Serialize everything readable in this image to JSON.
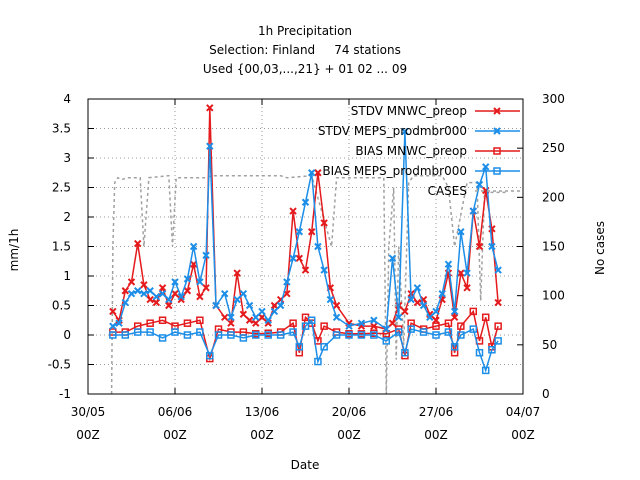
{
  "chart_data": {
    "type": "line",
    "title_lines": [
      "1h Precipitation",
      "Selection: Finland     74 stations",
      "Used {00,03,...,21} + 01 02 ... 09"
    ],
    "xlabel": "Date",
    "ylabel": "mm/1h",
    "y2label": "No cases",
    "xlim": [
      0,
      35
    ],
    "ylim": [
      -1,
      4
    ],
    "y2lim": [
      0,
      300
    ],
    "x_ticks": [
      {
        "x": 0,
        "label1": "30/05",
        "label2": "00Z"
      },
      {
        "x": 7,
        "label1": "06/06",
        "label2": "00Z"
      },
      {
        "x": 14,
        "label1": "13/06",
        "label2": "00Z"
      },
      {
        "x": 21,
        "label1": "20/06",
        "label2": "00Z"
      },
      {
        "x": 28,
        "label1": "27/06",
        "label2": "00Z"
      },
      {
        "x": 35,
        "label1": "04/07",
        "label2": "00Z"
      }
    ],
    "y_ticks": [
      "-1",
      "-0.5",
      "0",
      "0.5",
      "1",
      "1.5",
      "2",
      "2.5",
      "3",
      "3.5",
      "4"
    ],
    "y2_ticks": [
      "0",
      "50",
      "100",
      "150",
      "200",
      "250",
      "300"
    ],
    "grid": true,
    "legend_position": "top-right",
    "colors": {
      "red": "#e41a1c",
      "blue": "#1c8ee8",
      "gray": "#a0a0a0"
    },
    "series": [
      {
        "name": "STDV MNWC_preop",
        "axis": "y1",
        "marker": "x",
        "color": "#e41a1c",
        "points": [
          [
            2,
            0.4
          ],
          [
            2.5,
            0.25
          ],
          [
            3,
            0.75
          ],
          [
            3.5,
            0.9
          ],
          [
            4,
            1.55
          ],
          [
            4.5,
            0.85
          ],
          [
            5,
            0.6
          ],
          [
            5.5,
            0.55
          ],
          [
            6,
            0.8
          ],
          [
            6.5,
            0.5
          ],
          [
            7,
            0.7
          ],
          [
            7.5,
            0.6
          ],
          [
            8,
            0.75
          ],
          [
            8.5,
            1.2
          ],
          [
            9,
            0.65
          ],
          [
            9.5,
            0.8
          ],
          [
            9.8,
            3.85
          ],
          [
            10.3,
            0.5
          ],
          [
            11,
            0.3
          ],
          [
            11.5,
            0.2
          ],
          [
            12,
            1.05
          ],
          [
            12.5,
            0.35
          ],
          [
            13,
            0.25
          ],
          [
            13.5,
            0.2
          ],
          [
            14,
            0.3
          ],
          [
            14.5,
            0.2
          ],
          [
            15,
            0.5
          ],
          [
            15.5,
            0.6
          ],
          [
            16,
            0.7
          ],
          [
            16.5,
            2.1
          ],
          [
            17,
            1.3
          ],
          [
            17.5,
            1.1
          ],
          [
            18,
            1.75
          ],
          [
            18.5,
            2.75
          ],
          [
            19,
            1.9
          ],
          [
            19.5,
            0.8
          ],
          [
            20,
            0.5
          ],
          [
            21,
            0.2
          ],
          [
            22,
            0.15
          ],
          [
            23,
            0.15
          ],
          [
            24,
            0.1
          ],
          [
            24.5,
            0.2
          ],
          [
            25,
            0.5
          ],
          [
            25.5,
            0.4
          ],
          [
            26,
            0.7
          ],
          [
            26.5,
            0.55
          ],
          [
            27,
            0.6
          ],
          [
            27.5,
            0.35
          ],
          [
            28,
            0.25
          ],
          [
            28.5,
            0.6
          ],
          [
            29,
            1.05
          ],
          [
            29.5,
            0.3
          ],
          [
            30,
            1.05
          ],
          [
            30.5,
            0.8
          ],
          [
            31,
            2.1
          ],
          [
            31.5,
            1.5
          ],
          [
            32,
            2.45
          ],
          [
            32.5,
            1.8
          ],
          [
            33,
            0.55
          ]
        ]
      },
      {
        "name": "STDV MEPS_prodmbr000",
        "axis": "y1",
        "marker": "x",
        "color": "#1c8ee8",
        "points": [
          [
            2,
            0.15
          ],
          [
            2.5,
            0.2
          ],
          [
            3,
            0.55
          ],
          [
            3.5,
            0.7
          ],
          [
            4,
            0.75
          ],
          [
            4.5,
            0.7
          ],
          [
            5,
            0.75
          ],
          [
            5.5,
            0.65
          ],
          [
            6,
            0.7
          ],
          [
            6.5,
            0.6
          ],
          [
            7,
            0.9
          ],
          [
            7.5,
            0.65
          ],
          [
            8,
            0.95
          ],
          [
            8.5,
            1.5
          ],
          [
            9,
            0.9
          ],
          [
            9.5,
            1.35
          ],
          [
            9.8,
            3.2
          ],
          [
            10.3,
            0.5
          ],
          [
            11,
            0.7
          ],
          [
            11.5,
            0.3
          ],
          [
            12,
            0.6
          ],
          [
            12.5,
            0.7
          ],
          [
            13,
            0.5
          ],
          [
            13.5,
            0.3
          ],
          [
            14,
            0.4
          ],
          [
            14.5,
            0.25
          ],
          [
            15,
            0.4
          ],
          [
            15.5,
            0.5
          ],
          [
            16,
            0.9
          ],
          [
            16.5,
            1.3
          ],
          [
            17,
            1.75
          ],
          [
            17.5,
            2.25
          ],
          [
            18,
            2.75
          ],
          [
            18.5,
            1.5
          ],
          [
            19,
            1.1
          ],
          [
            19.5,
            0.6
          ],
          [
            20,
            0.3
          ],
          [
            21,
            0.15
          ],
          [
            22,
            0.2
          ],
          [
            23,
            0.25
          ],
          [
            24,
            0.1
          ],
          [
            24.5,
            1.3
          ],
          [
            25,
            0.3
          ],
          [
            25.5,
            3.45
          ],
          [
            26,
            0.6
          ],
          [
            26.5,
            0.8
          ],
          [
            27,
            0.5
          ],
          [
            27.5,
            0.3
          ],
          [
            28,
            0.4
          ],
          [
            28.5,
            0.7
          ],
          [
            29,
            1.2
          ],
          [
            29.5,
            0.4
          ],
          [
            30,
            1.75
          ],
          [
            30.5,
            1.05
          ],
          [
            31,
            2.1
          ],
          [
            31.5,
            2.55
          ],
          [
            32,
            2.85
          ],
          [
            32.5,
            1.5
          ],
          [
            33,
            1.1
          ]
        ]
      },
      {
        "name": "BIAS MNWC_preop",
        "axis": "y1",
        "marker": "square",
        "color": "#e41a1c",
        "points": [
          [
            2,
            0.05
          ],
          [
            3,
            0.05
          ],
          [
            4,
            0.15
          ],
          [
            5,
            0.2
          ],
          [
            6,
            0.25
          ],
          [
            7,
            0.15
          ],
          [
            8,
            0.2
          ],
          [
            9,
            0.25
          ],
          [
            9.8,
            -0.4
          ],
          [
            10.5,
            0.1
          ],
          [
            11.5,
            0.05
          ],
          [
            12.5,
            0.05
          ],
          [
            13.5,
            0.02
          ],
          [
            14.5,
            0.03
          ],
          [
            15.5,
            0.05
          ],
          [
            16.5,
            0.2
          ],
          [
            17,
            -0.3
          ],
          [
            17.5,
            0.3
          ],
          [
            18,
            0.2
          ],
          [
            18.5,
            -0.1
          ],
          [
            19,
            0.15
          ],
          [
            20,
            0.05
          ],
          [
            21,
            0.02
          ],
          [
            22,
            0.02
          ],
          [
            23,
            0.03
          ],
          [
            24,
            0.02
          ],
          [
            25,
            0.1
          ],
          [
            25.5,
            -0.35
          ],
          [
            26,
            0.2
          ],
          [
            27,
            0.1
          ],
          [
            28,
            0.15
          ],
          [
            29,
            0.2
          ],
          [
            29.5,
            -0.3
          ],
          [
            30,
            0.15
          ],
          [
            31,
            0.4
          ],
          [
            31.5,
            -0.1
          ],
          [
            32,
            0.3
          ],
          [
            32.5,
            -0.2
          ],
          [
            33,
            0.15
          ]
        ]
      },
      {
        "name": "BIAS MEPS_prodmbr000",
        "axis": "y1",
        "marker": "square",
        "color": "#1c8ee8",
        "points": [
          [
            2,
            0.0
          ],
          [
            3,
            0.0
          ],
          [
            4,
            0.05
          ],
          [
            5,
            0.05
          ],
          [
            6,
            -0.05
          ],
          [
            7,
            0.05
          ],
          [
            8,
            0.0
          ],
          [
            9,
            0.05
          ],
          [
            9.8,
            -0.35
          ],
          [
            10.5,
            0.0
          ],
          [
            11.5,
            0.0
          ],
          [
            12.5,
            -0.05
          ],
          [
            13.5,
            0.0
          ],
          [
            14.5,
            0.0
          ],
          [
            15.5,
            0.0
          ],
          [
            16.5,
            0.05
          ],
          [
            17,
            -0.2
          ],
          [
            17.5,
            0.15
          ],
          [
            18,
            0.25
          ],
          [
            18.5,
            -0.45
          ],
          [
            19,
            -0.2
          ],
          [
            20,
            0.0
          ],
          [
            21,
            0.0
          ],
          [
            22,
            0.0
          ],
          [
            23,
            0.0
          ],
          [
            24,
            -0.1
          ],
          [
            25,
            0.05
          ],
          [
            25.5,
            -0.3
          ],
          [
            26,
            0.1
          ],
          [
            27,
            0.05
          ],
          [
            28,
            0.0
          ],
          [
            29,
            0.05
          ],
          [
            29.5,
            -0.2
          ],
          [
            30,
            0.0
          ],
          [
            31,
            0.1
          ],
          [
            31.5,
            -0.3
          ],
          [
            32,
            -0.6
          ],
          [
            32.5,
            -0.25
          ],
          [
            33,
            -0.1
          ]
        ]
      },
      {
        "name": "CASES",
        "axis": "y2",
        "marker": "none",
        "color": "#a0a0a0",
        "dashed": true,
        "points": [
          [
            1.9,
            0
          ],
          [
            2.0,
            150
          ],
          [
            2.15,
            215
          ],
          [
            2.4,
            220
          ],
          [
            2.7,
            218
          ],
          [
            3.2,
            220
          ],
          [
            4.2,
            220
          ],
          [
            4.5,
            150
          ],
          [
            4.9,
            220
          ],
          [
            6.5,
            222
          ],
          [
            6.8,
            150
          ],
          [
            7.1,
            220
          ],
          [
            9.0,
            220
          ],
          [
            9.5,
            220
          ],
          [
            10.0,
            222
          ],
          [
            13.0,
            222
          ],
          [
            15.5,
            222
          ],
          [
            16.0,
            220
          ],
          [
            18.0,
            222
          ],
          [
            19.6,
            150
          ],
          [
            20.0,
            220
          ],
          [
            23.8,
            220
          ],
          [
            24.0,
            0
          ],
          [
            24.2,
            150
          ],
          [
            24.6,
            210
          ],
          [
            24.8,
            35
          ],
          [
            25.0,
            150
          ],
          [
            25.4,
            50
          ],
          [
            25.8,
            215
          ],
          [
            26.2,
            222
          ],
          [
            28.5,
            222
          ],
          [
            29.0,
            210
          ],
          [
            29.5,
            150
          ],
          [
            30.5,
            215
          ],
          [
            31.3,
            215
          ],
          [
            31.6,
            95
          ],
          [
            31.9,
            205
          ],
          [
            33.0,
            205
          ],
          [
            33.8,
            205
          ]
        ]
      }
    ]
  }
}
